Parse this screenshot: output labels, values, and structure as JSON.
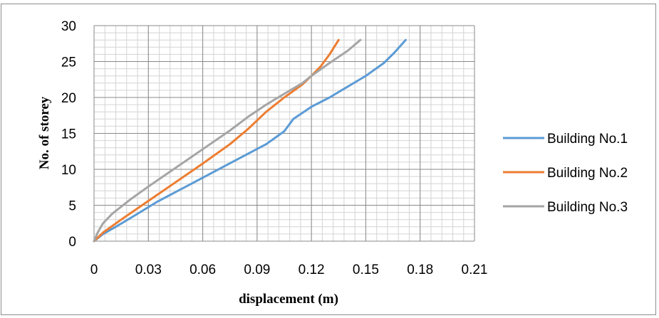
{
  "chart_data": {
    "type": "line",
    "xlabel": "displacement (m)",
    "ylabel": "No. of storey",
    "xlim": [
      0,
      0.21
    ],
    "ylim": [
      0,
      30
    ],
    "x_ticks": [
      "0",
      "0.03",
      "0.06",
      "0.09",
      "0.12",
      "0.15",
      "0.18",
      "0.21"
    ],
    "y_ticks": [
      "0",
      "5",
      "10",
      "15",
      "20",
      "25",
      "30"
    ],
    "grid": true,
    "legend_position": "right",
    "series": [
      {
        "name": "Building No.1",
        "color": "#5b9bd5",
        "x": [
          0,
          0.005,
          0.012,
          0.022,
          0.035,
          0.05,
          0.065,
          0.08,
          0.095,
          0.105,
          0.11,
          0.12,
          0.13,
          0.14,
          0.15,
          0.16,
          0.166,
          0.172
        ],
        "y": [
          0,
          1,
          2,
          3.5,
          5.5,
          7.5,
          9.5,
          11.5,
          13.5,
          15.3,
          17,
          18.7,
          20,
          21.5,
          23,
          24.8,
          26.3,
          28
        ]
      },
      {
        "name": "Building No.2",
        "color": "#ed7d31",
        "x": [
          0,
          0.005,
          0.015,
          0.03,
          0.045,
          0.06,
          0.075,
          0.085,
          0.095,
          0.105,
          0.115,
          0.12,
          0.125,
          0.13,
          0.135
        ],
        "y": [
          0,
          1.2,
          3,
          5.6,
          8.2,
          10.8,
          13.5,
          15.6,
          18,
          20,
          21.8,
          23,
          24.3,
          26,
          28
        ]
      },
      {
        "name": "Building No.3",
        "color": "#a5a5a5",
        "x": [
          0,
          0.002,
          0.005,
          0.01,
          0.02,
          0.03,
          0.045,
          0.06,
          0.075,
          0.085,
          0.095,
          0.105,
          0.115,
          0.12,
          0.13,
          0.14,
          0.147
        ],
        "y": [
          0,
          1.2,
          2.5,
          3.8,
          5.8,
          7.6,
          10.2,
          12.8,
          15.4,
          17.3,
          19,
          20.5,
          22,
          23,
          24.8,
          26.5,
          28
        ]
      }
    ]
  }
}
